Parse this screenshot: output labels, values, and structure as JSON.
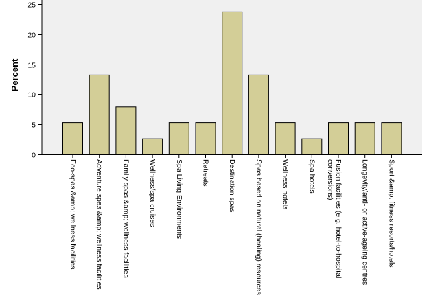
{
  "chart_data": {
    "type": "bar",
    "title": "",
    "xlabel": "",
    "ylabel": "Percent",
    "ylim": [
      0,
      25
    ],
    "yticks": [
      "0",
      "5",
      "10",
      "15",
      "20",
      "25"
    ],
    "grid": false,
    "categories": [
      "Eco-spas &amp; wellness facilities",
      "Adventure spas &amp; wellness facilities",
      "Family spas &amp; wellness facilities",
      "Wellness/spa cruises",
      "Spa Living Environments",
      "Retreats",
      "Destination spas",
      "Spas based on natural (healing) resources",
      "Wellness hotels",
      "Spa hotels",
      "Fusion facilities (e.g. hotel-to-hospital conversions)",
      "Longevity/anti- or active-ageing centres",
      "Sport &amp; fitness resorts/hotels"
    ],
    "category_lines": [
      [
        "Eco-spas &amp; wellness facilities"
      ],
      [
        "Adventure spas &amp; wellness facilities"
      ],
      [
        "Family spas &amp; wellness facilities"
      ],
      [
        "Wellness/spa cruises"
      ],
      [
        "Spa Living Environments"
      ],
      [
        "Retreats"
      ],
      [
        "Destination spas"
      ],
      [
        "Spas based on natural (healing) resources"
      ],
      [
        "Wellness hotels"
      ],
      [
        "Spa hotels"
      ],
      [
        "Fusion facilities (e.g. hotel-to-hospital",
        "conversions)"
      ],
      [
        "Longevity/anti- or active-ageing centres"
      ],
      [
        "Sport &amp; fitness resorts/hotels"
      ]
    ],
    "values": [
      5.3,
      13.2,
      7.9,
      2.6,
      5.3,
      5.3,
      23.7,
      13.2,
      5.3,
      2.6,
      5.3,
      5.3,
      5.3
    ],
    "colors": {
      "bar_fill": "#d3ce97",
      "bar_stroke": "#000000",
      "plot_bg": "#f0f0f0",
      "page_bg": "#ffffff"
    }
  }
}
